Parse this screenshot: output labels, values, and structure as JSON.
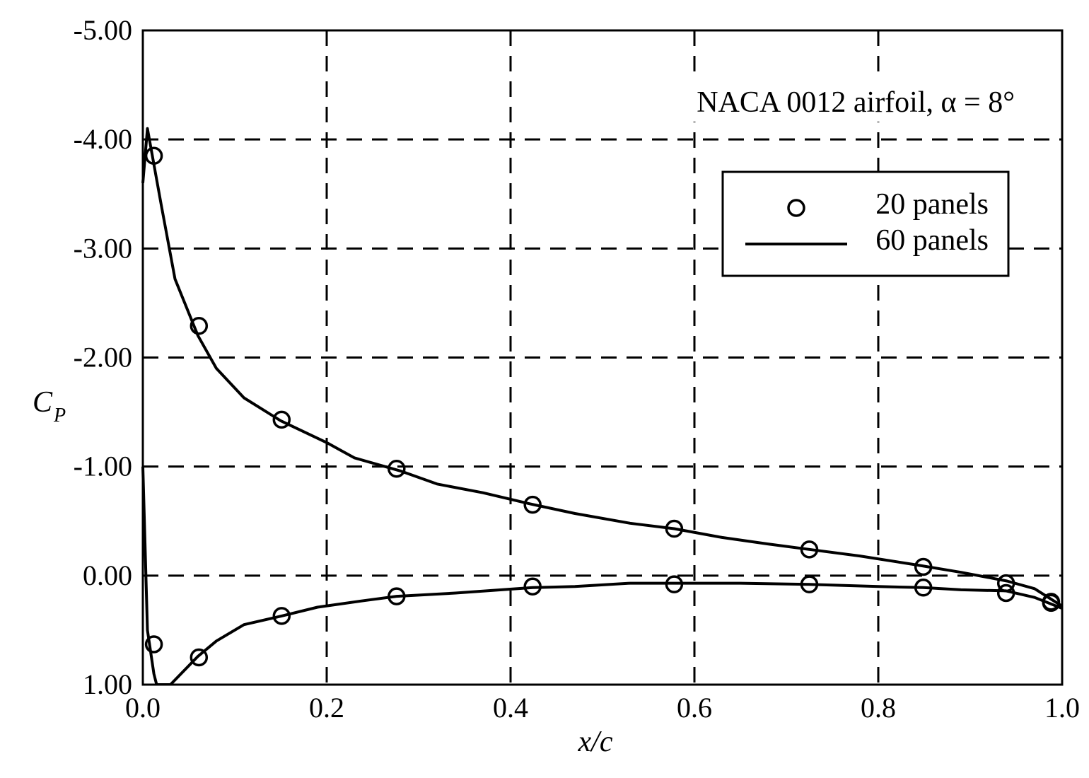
{
  "chart_data": {
    "type": "line",
    "annotation": "NACA 0012 airfoil, α = 8°",
    "xlabel": "x/c",
    "ylabel_main": "C",
    "ylabel_sub": "P",
    "xlim": [
      0.0,
      1.0
    ],
    "ylim_top": -5.0,
    "ylim_bottom": 1.0,
    "y_inverted": true,
    "grid": true,
    "grid_style": "dashed",
    "legend_position": "upper-right",
    "x_ticks": [
      "0.0",
      "0.2",
      "0.4",
      "0.6",
      "0.8",
      "1.0"
    ],
    "x_tick_values": [
      0.0,
      0.2,
      0.4,
      0.6,
      0.8,
      1.0
    ],
    "y_ticks": [
      "-5.00",
      "-4.00",
      "-3.00",
      "-2.00",
      "-1.00",
      "0.00",
      "1.00"
    ],
    "y_tick_values": [
      -5.0,
      -4.0,
      -3.0,
      -2.0,
      -1.0,
      0.0,
      1.0
    ],
    "series": [
      {
        "name": "20 panels",
        "style": "circle-markers",
        "points": [
          [
            0.012,
            -3.85
          ],
          [
            0.061,
            -2.29
          ],
          [
            0.151,
            -1.43
          ],
          [
            0.276,
            -0.98
          ],
          [
            0.424,
            -0.65
          ],
          [
            0.578,
            -0.43
          ],
          [
            0.725,
            -0.24
          ],
          [
            0.849,
            -0.08
          ],
          [
            0.939,
            0.07
          ],
          [
            0.988,
            0.24
          ],
          [
            0.012,
            0.63
          ],
          [
            0.061,
            0.75
          ],
          [
            0.151,
            0.37
          ],
          [
            0.276,
            0.19
          ],
          [
            0.424,
            0.1
          ],
          [
            0.578,
            0.08
          ],
          [
            0.725,
            0.08
          ],
          [
            0.849,
            0.11
          ],
          [
            0.939,
            0.16
          ],
          [
            0.988,
            0.25
          ]
        ]
      },
      {
        "name": "60 panels",
        "style": "solid-line",
        "upper": [
          [
            0.0,
            -3.6
          ],
          [
            0.005,
            -4.1
          ],
          [
            0.02,
            -3.4
          ],
          [
            0.035,
            -2.72
          ],
          [
            0.06,
            -2.2
          ],
          [
            0.08,
            -1.9
          ],
          [
            0.11,
            -1.63
          ],
          [
            0.15,
            -1.42
          ],
          [
            0.2,
            -1.22
          ],
          [
            0.23,
            -1.08
          ],
          [
            0.28,
            -0.96
          ],
          [
            0.32,
            -0.84
          ],
          [
            0.37,
            -0.76
          ],
          [
            0.42,
            -0.66
          ],
          [
            0.47,
            -0.57
          ],
          [
            0.53,
            -0.48
          ],
          [
            0.578,
            -0.43
          ],
          [
            0.63,
            -0.35
          ],
          [
            0.68,
            -0.29
          ],
          [
            0.725,
            -0.24
          ],
          [
            0.78,
            -0.18
          ],
          [
            0.84,
            -0.1
          ],
          [
            0.89,
            -0.03
          ],
          [
            0.94,
            0.05
          ],
          [
            0.97,
            0.12
          ],
          [
            1.0,
            0.28
          ]
        ],
        "lower": [
          [
            0.0,
            -1.0
          ],
          [
            0.005,
            0.5
          ],
          [
            0.012,
            0.9
          ],
          [
            0.015,
            1.0
          ],
          [
            0.03,
            1.0
          ],
          [
            0.06,
            0.74
          ],
          [
            0.08,
            0.6
          ],
          [
            0.11,
            0.45
          ],
          [
            0.151,
            0.37
          ],
          [
            0.19,
            0.29
          ],
          [
            0.24,
            0.23
          ],
          [
            0.276,
            0.19
          ],
          [
            0.34,
            0.16
          ],
          [
            0.424,
            0.11
          ],
          [
            0.47,
            0.1
          ],
          [
            0.53,
            0.07
          ],
          [
            0.58,
            0.07
          ],
          [
            0.65,
            0.07
          ],
          [
            0.725,
            0.08
          ],
          [
            0.8,
            0.1
          ],
          [
            0.849,
            0.11
          ],
          [
            0.89,
            0.13
          ],
          [
            0.939,
            0.14
          ],
          [
            0.97,
            0.2
          ],
          [
            1.0,
            0.3
          ]
        ]
      }
    ]
  }
}
